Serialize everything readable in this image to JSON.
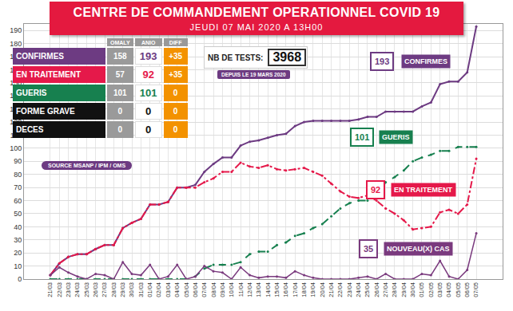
{
  "header": {
    "title": "CENTRE DE COMMANDEMENT OPERATIONNEL COVID 19",
    "subtitle": "JEUDI 07 MAI 2020 A 13H00"
  },
  "tests": {
    "label": "NB DE TESTS:",
    "value": 3968,
    "since": "DEPUIS LE 19 MARS 2020"
  },
  "table": {
    "header": [
      "OMALY",
      "ANIO",
      "DIFF"
    ],
    "rows": [
      {
        "label": "CONFIRMES",
        "color": "#6d3b82",
        "cells": [
          "158",
          "193",
          "+35"
        ]
      },
      {
        "label": "EN TRAITEMENT",
        "color": "#e5194a",
        "cells": [
          "57",
          "92",
          "+35"
        ]
      },
      {
        "label": "GUERIS",
        "color": "#17804f",
        "cells": [
          "101",
          "101",
          "0"
        ]
      },
      {
        "label": "FORME GRAVE",
        "color": "#111111",
        "cells": [
          "0",
          "0",
          "0"
        ]
      },
      {
        "label": "DECES",
        "color": "#111111",
        "cells": [
          "0",
          "0",
          "0"
        ]
      }
    ]
  },
  "source": "SOURCE MSANP / IPM / OMS",
  "chart_data": {
    "type": "line",
    "categories": [
      "21/03",
      "22/03",
      "23/03",
      "24/03",
      "25/03",
      "26/03",
      "27/03",
      "28/03",
      "29/03",
      "30/03",
      "31/03",
      "01/04",
      "02/04",
      "03/04",
      "04/04",
      "05/04",
      "06/04",
      "07/04",
      "08/04",
      "09/04",
      "10/04",
      "11/04",
      "12/04",
      "13/04",
      "14/04",
      "15/04",
      "16/04",
      "17/04",
      "18/04",
      "19/04",
      "20/04",
      "21/04",
      "22/04",
      "23/04",
      "24/04",
      "25/04",
      "26/04",
      "27/04",
      "28/04",
      "29/04",
      "30/04",
      "01/05",
      "02/05",
      "03/05",
      "04/05",
      "05/05",
      "06/05",
      "07/05"
    ],
    "series": [
      {
        "name": "CONFIRMES",
        "color": "#6d3b82",
        "marker": "circle",
        "line_style": "solid",
        "values": [
          3,
          12,
          17,
          19,
          19,
          23,
          26,
          26,
          39,
          43,
          46,
          57,
          57,
          59,
          70,
          70,
          72,
          82,
          88,
          93,
          93,
          102,
          105,
          106,
          108,
          110,
          111,
          117,
          120,
          121,
          121,
          121,
          121,
          121,
          122,
          124,
          124,
          128,
          128,
          128,
          128,
          132,
          135,
          149,
          151,
          151,
          158,
          193
        ]
      },
      {
        "name": "EN TRAITEMENT",
        "color": "#e5194a",
        "marker": "circle",
        "line_style": "dashdot",
        "values": [
          3,
          12,
          17,
          19,
          19,
          23,
          26,
          26,
          39,
          43,
          46,
          57,
          57,
          59,
          70,
          70,
          70,
          74,
          77,
          82,
          82,
          89,
          86,
          85,
          87,
          84,
          83,
          84,
          85,
          82,
          79,
          73,
          67,
          63,
          62,
          64,
          60,
          54,
          50,
          45,
          38,
          39,
          40,
          51,
          53,
          50,
          57,
          92
        ]
      },
      {
        "name": "GUERIS",
        "color": "#17804f",
        "marker": "circle",
        "line_style": "dash",
        "values": [
          0,
          0,
          0,
          0,
          0,
          0,
          0,
          0,
          0,
          0,
          0,
          0,
          0,
          0,
          0,
          0,
          2,
          8,
          11,
          11,
          11,
          13,
          19,
          21,
          21,
          26,
          28,
          33,
          35,
          39,
          42,
          48,
          54,
          58,
          60,
          60,
          64,
          74,
          78,
          83,
          90,
          93,
          95,
          98,
          98,
          101,
          101,
          101
        ]
      },
      {
        "name": "NOUVEAU(X) CAS",
        "color": "#7a3a7e",
        "marker": "circle",
        "line_style": "solid",
        "values": [
          3,
          9,
          5,
          2,
          0,
          4,
          3,
          0,
          13,
          4,
          3,
          11,
          0,
          2,
          11,
          0,
          2,
          10,
          6,
          5,
          0,
          9,
          3,
          1,
          2,
          2,
          1,
          6,
          3,
          1,
          0,
          0,
          0,
          0,
          1,
          2,
          0,
          4,
          0,
          0,
          0,
          4,
          3,
          14,
          2,
          0,
          7,
          35
        ]
      }
    ],
    "ylim": [
      0,
      195
    ],
    "yticks": [
      0,
      10,
      20,
      30,
      40,
      50,
      60,
      70,
      80,
      90,
      100,
      110,
      120,
      130,
      140,
      150,
      160,
      170,
      180,
      190
    ],
    "grid": true
  }
}
